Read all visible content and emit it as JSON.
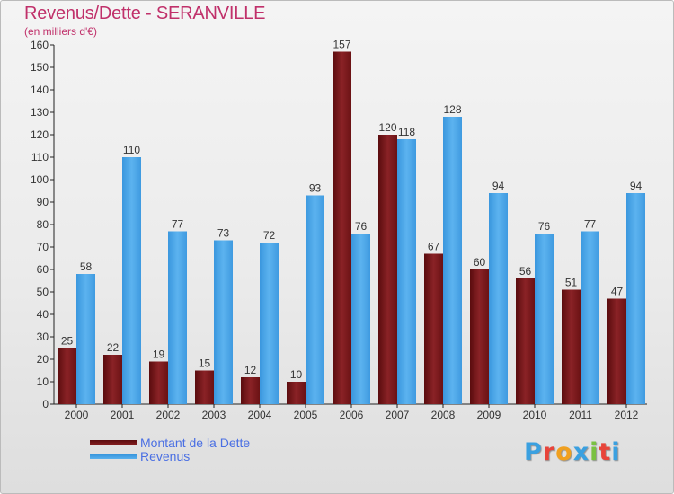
{
  "chart_data": {
    "type": "bar",
    "title": "Revenus/Dette - SERANVILLE",
    "subtitle": "(en milliers d'€)",
    "xlabel": "",
    "ylabel": "",
    "categories": [
      "2000",
      "2001",
      "2002",
      "2003",
      "2004",
      "2005",
      "2006",
      "2007",
      "2008",
      "2009",
      "2010",
      "2011",
      "2012"
    ],
    "series": [
      {
        "name": "Montant de la Dette",
        "color": "#7a1a1c",
        "values": [
          25,
          22,
          19,
          15,
          12,
          10,
          157,
          120,
          67,
          60,
          56,
          51,
          47
        ]
      },
      {
        "name": "Revenus",
        "color": "#4da3e8",
        "values": [
          58,
          110,
          77,
          73,
          72,
          93,
          76,
          118,
          128,
          94,
          76,
          77,
          94
        ]
      }
    ],
    "ylim": [
      0,
      160
    ],
    "yticks": [
      0,
      10,
      20,
      30,
      40,
      50,
      60,
      70,
      80,
      90,
      100,
      110,
      120,
      130,
      140,
      150,
      160
    ],
    "grid": false,
    "legend_position": "bottom-left"
  },
  "logo": {
    "text": "Proxiti",
    "colors": [
      "#3aa0e0",
      "#e8443a",
      "#f0a020",
      "#3aa0e0",
      "#7ac142",
      "#e8443a",
      "#3aa0e0"
    ]
  }
}
